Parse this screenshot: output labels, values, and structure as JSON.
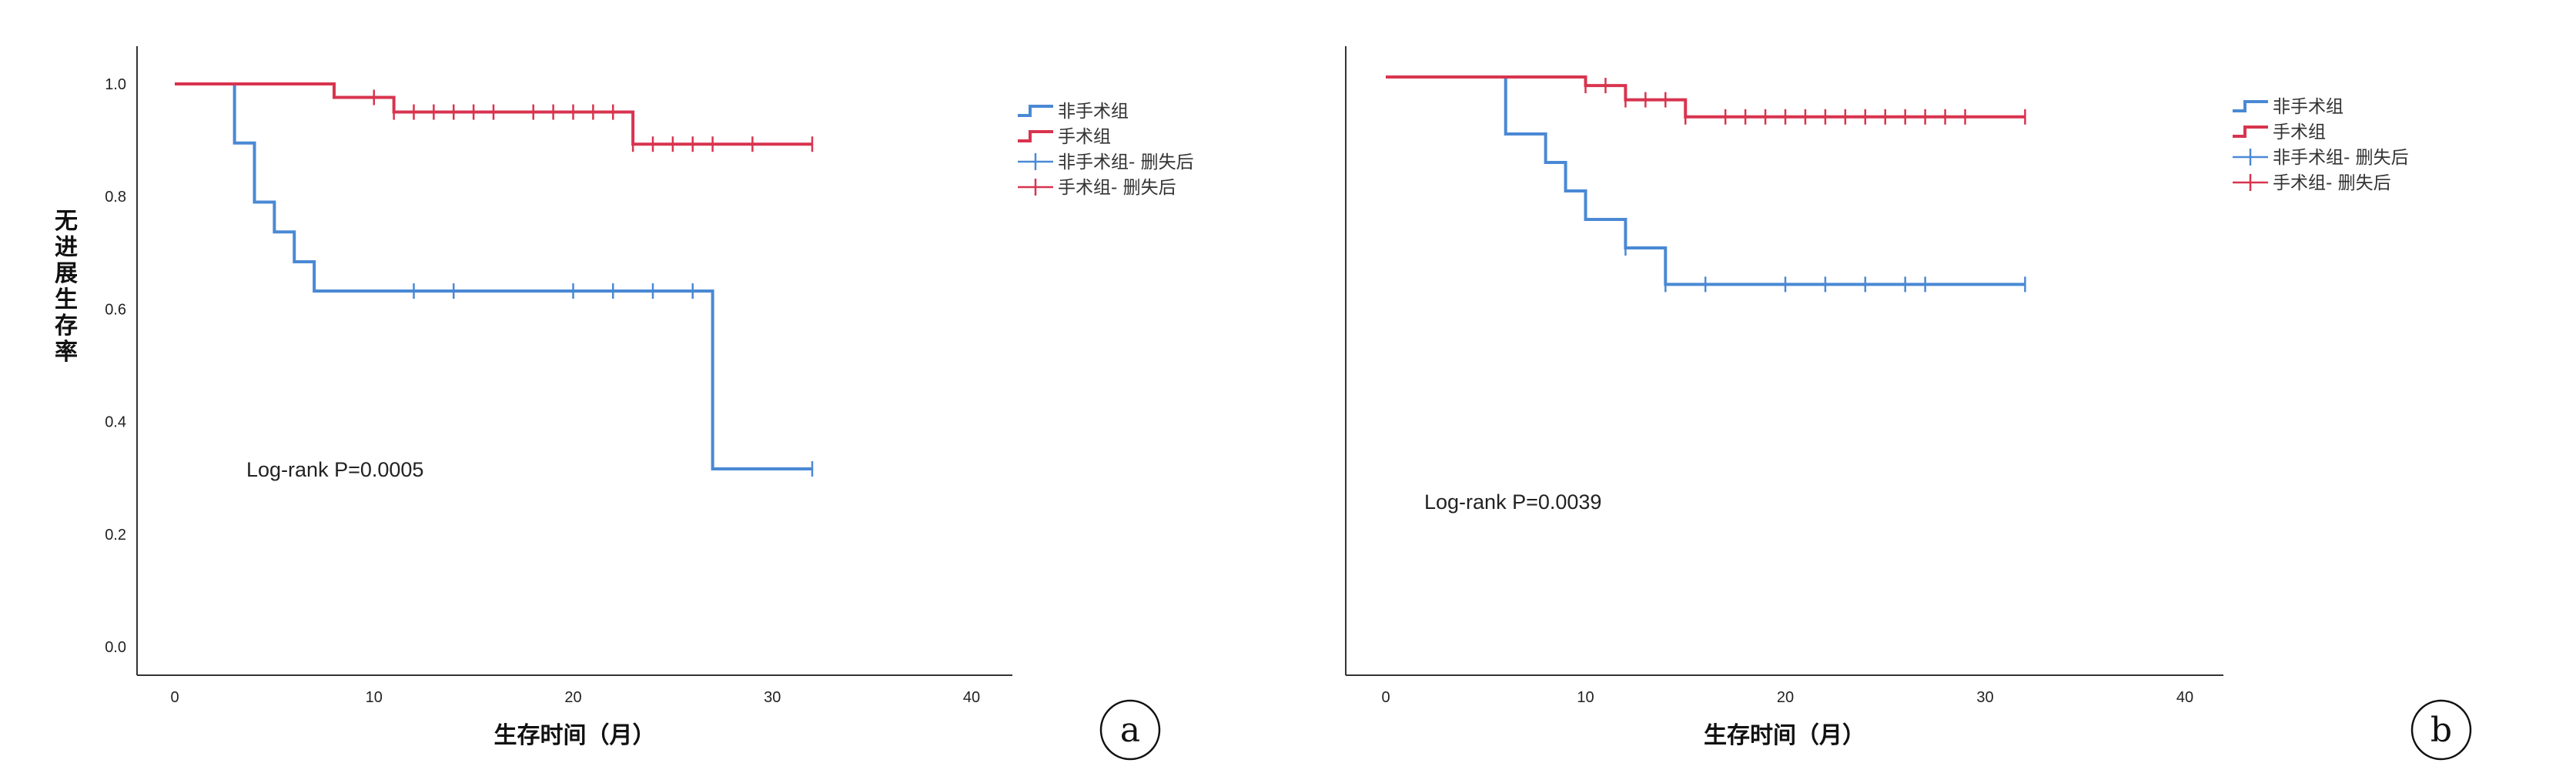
{
  "chart_data": [
    {
      "type": "line",
      "step": true,
      "panel_label": "a",
      "xlabel": "生存时间（月）",
      "ylabel": "无进展生存率",
      "xlim": [
        0,
        40
      ],
      "ylim": [
        0,
        1.0
      ],
      "x_ticks": [
        "0",
        "10",
        "20",
        "30",
        "40"
      ],
      "y_ticks": [
        "0.0",
        "0.2",
        "0.4",
        "0.6",
        "0.8",
        "1.0"
      ],
      "annotation": "Log-rank P=0.0005",
      "grid": false,
      "legend_position": "top-right",
      "legend": [
        "非手术组",
        "手术组",
        "非手术组- 删失后",
        "手术组- 删失后"
      ],
      "series": [
        {
          "name": "非手术组",
          "color": "#4a89d4",
          "steps": [
            [
              0,
              1.0
            ],
            [
              3,
              0.895
            ],
            [
              4,
              0.79
            ],
            [
              5,
              0.737
            ],
            [
              6,
              0.684
            ],
            [
              7,
              0.632
            ],
            [
              27,
              0.316
            ],
            [
              32,
              0.316
            ]
          ],
          "censored": [
            12,
            14,
            20,
            22,
            24,
            26,
            32
          ]
        },
        {
          "name": "手术组",
          "color": "#d8344f",
          "steps": [
            [
              0,
              1.0
            ],
            [
              8,
              0.976
            ],
            [
              11,
              0.95
            ],
            [
              23,
              0.893
            ],
            [
              32,
              0.893
            ]
          ],
          "censored": [
            10,
            11,
            12,
            13,
            14,
            15,
            16,
            18,
            19,
            20,
            21,
            22,
            23,
            24,
            25,
            26,
            27,
            29,
            32
          ]
        }
      ]
    },
    {
      "type": "line",
      "step": true,
      "panel_label": "b",
      "xlabel": "生存时间（月）",
      "ylabel": "",
      "xlim": [
        0,
        40
      ],
      "ylim": [
        0,
        1.0
      ],
      "x_ticks": [
        "0",
        "10",
        "20",
        "30",
        "40"
      ],
      "y_ticks": [],
      "annotation": "Log-rank P=0.0039",
      "grid": false,
      "legend_position": "top-right",
      "legend": [
        "非手术组",
        "手术组",
        "非手术组- 删失后",
        "手术组- 删失后"
      ],
      "series": [
        {
          "name": "非手术组",
          "color": "#4a89d4",
          "steps": [
            [
              0,
              1.0
            ],
            [
              6,
              0.9
            ],
            [
              8,
              0.85
            ],
            [
              9,
              0.8
            ],
            [
              10,
              0.75
            ],
            [
              12,
              0.7
            ],
            [
              14,
              0.636
            ],
            [
              32,
              0.636
            ]
          ],
          "censored": [
            12,
            14,
            16,
            20,
            22,
            24,
            26,
            27,
            32
          ]
        },
        {
          "name": "手术组",
          "color": "#d8344f",
          "steps": [
            [
              0,
              1.0
            ],
            [
              10,
              0.985
            ],
            [
              12,
              0.96
            ],
            [
              15,
              0.93
            ],
            [
              32,
              0.93
            ]
          ],
          "censored": [
            10,
            11,
            12,
            13,
            14,
            15,
            17,
            18,
            19,
            20,
            21,
            22,
            23,
            24,
            25,
            26,
            27,
            28,
            29,
            32
          ]
        }
      ]
    }
  ]
}
